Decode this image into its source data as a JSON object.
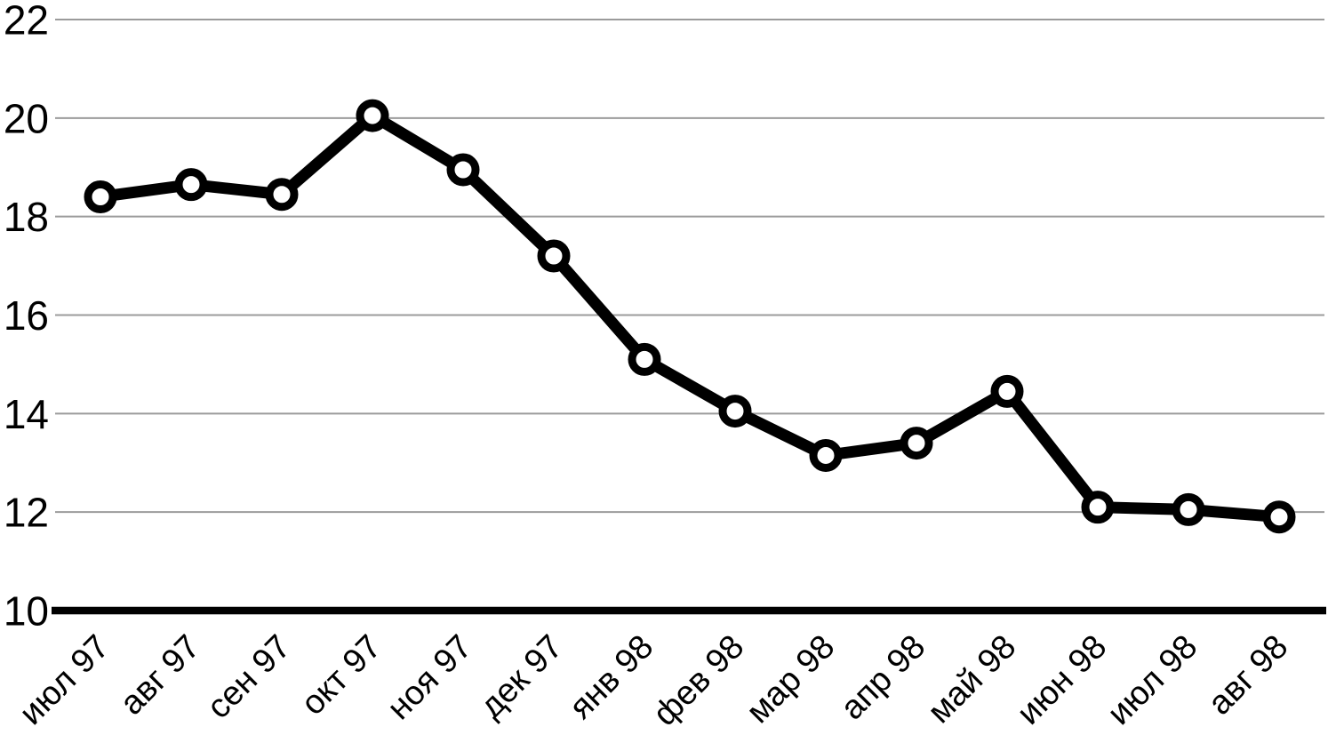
{
  "chart_data": {
    "type": "line",
    "title": "",
    "xlabel": "",
    "ylabel": "",
    "categories": [
      "июл 97",
      "авг 97",
      "сен 97",
      "окт 97",
      "ноя 97",
      "дек 97",
      "янв 98",
      "фев 98",
      "мар 98",
      "апр 98",
      "май 98",
      "июн 98",
      "июл 98",
      "авг 98"
    ],
    "series": [
      {
        "name": "",
        "values": [
          18.4,
          18.65,
          18.45,
          20.05,
          18.95,
          17.2,
          15.1,
          14.05,
          13.15,
          13.4,
          14.45,
          12.1,
          12.05,
          11.9
        ]
      }
    ],
    "ylim": [
      10,
      22
    ],
    "yticks": [
      10,
      12,
      14,
      16,
      18,
      20,
      22
    ],
    "ytick_labels": [
      "10",
      "12",
      "14",
      "16",
      "18",
      "20",
      "22"
    ],
    "grid": true,
    "legend_position": "none",
    "x_label_rotation_deg": 45,
    "marker": "circle-open",
    "styles": {
      "background_color": "#ffffff",
      "line_color": "#000000",
      "marker_fill_color": "#ffffff",
      "marker_stroke_color": "#000000",
      "gridline_color": "#9b9b9b",
      "axis_line_color": "#000000",
      "text_color": "#000000"
    }
  }
}
